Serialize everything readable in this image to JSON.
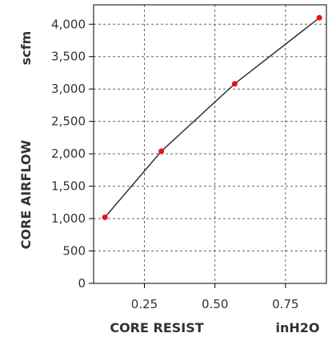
{
  "chart_data": {
    "type": "line",
    "title": "",
    "xlabel": "CORE RESIST",
    "xunit": "inH2O",
    "ylabel": "CORE AIRFLOW",
    "yunit": "scfm",
    "xlim": [
      0.07,
      0.895
    ],
    "ylim": [
      0,
      4300
    ],
    "x_ticks": [
      0.25,
      0.5,
      0.75
    ],
    "x_tick_labels": [
      "0.25",
      "0.50",
      "0.75"
    ],
    "y_ticks": [
      0,
      500,
      1000,
      1500,
      2000,
      2500,
      3000,
      3500,
      4000
    ],
    "y_tick_labels": [
      "0",
      "500",
      "1,000",
      "1,500",
      "2,000",
      "2,500",
      "3,000",
      "3,500",
      "4,000"
    ],
    "grid": true,
    "colors": {
      "line": "#333333",
      "marker": "#ee1111",
      "grid": "#666666",
      "axis": "#000000",
      "text": "#333333"
    },
    "series": [
      {
        "x": [
          0.11,
          0.31,
          0.57,
          0.87
        ],
        "y": [
          1020,
          2040,
          3080,
          4100
        ]
      }
    ]
  }
}
